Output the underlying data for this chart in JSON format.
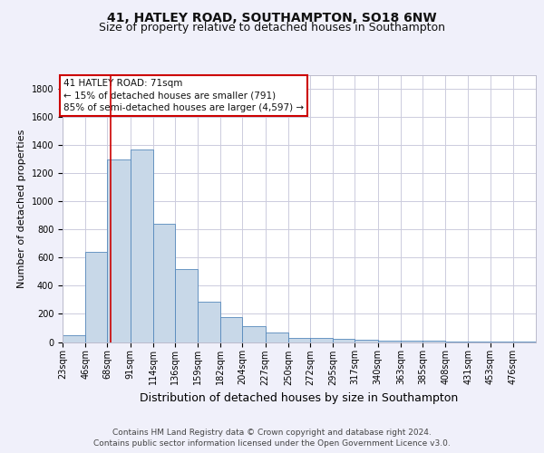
{
  "title": "41, HATLEY ROAD, SOUTHAMPTON, SO18 6NW",
  "subtitle": "Size of property relative to detached houses in Southampton",
  "xlabel": "Distribution of detached houses by size in Southampton",
  "ylabel": "Number of detached properties",
  "footer_line1": "Contains HM Land Registry data © Crown copyright and database right 2024.",
  "footer_line2": "Contains public sector information licensed under the Open Government Licence v3.0.",
  "annotation_line1": "41 HATLEY ROAD: 71sqm",
  "annotation_line2": "← 15% of detached houses are smaller (791)",
  "annotation_line3": "85% of semi-detached houses are larger (4,597) →",
  "bar_color": "#c8d8e8",
  "bar_edge_color": "#5588bb",
  "red_line_x": 71,
  "annotation_box_color": "#ffffff",
  "annotation_box_edge_color": "#cc0000",
  "categories": [
    "23sqm",
    "46sqm",
    "68sqm",
    "91sqm",
    "114sqm",
    "136sqm",
    "159sqm",
    "182sqm",
    "204sqm",
    "227sqm",
    "250sqm",
    "272sqm",
    "295sqm",
    "317sqm",
    "340sqm",
    "363sqm",
    "385sqm",
    "408sqm",
    "431sqm",
    "453sqm",
    "476sqm"
  ],
  "bin_edges": [
    23,
    46,
    68,
    91,
    114,
    136,
    159,
    182,
    204,
    227,
    250,
    272,
    295,
    317,
    340,
    363,
    385,
    408,
    431,
    453,
    476,
    499
  ],
  "values": [
    50,
    640,
    1300,
    1370,
    840,
    520,
    285,
    175,
    110,
    65,
    30,
    30,
    25,
    15,
    10,
    10,
    10,
    3,
    3,
    3,
    3
  ],
  "ylim": [
    0,
    1900
  ],
  "yticks": [
    0,
    200,
    400,
    600,
    800,
    1000,
    1200,
    1400,
    1600,
    1800
  ],
  "background_color": "#f0f0fa",
  "plot_background": "#ffffff",
  "grid_color": "#ccccdd",
  "title_fontsize": 10,
  "subtitle_fontsize": 9,
  "xlabel_fontsize": 9,
  "ylabel_fontsize": 8,
  "tick_fontsize": 7,
  "annotation_fontsize": 7.5,
  "footer_fontsize": 6.5
}
